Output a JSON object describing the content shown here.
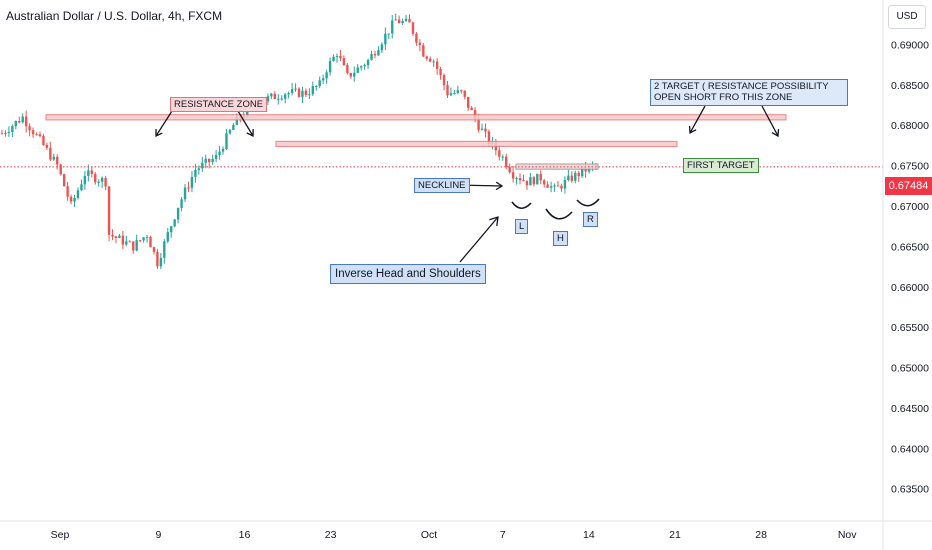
{
  "header": {
    "title": "Australian Dollar / U.S. Dollar, 4h, FXCM"
  },
  "currency_label": "USD",
  "current_price": "0.67484",
  "colors": {
    "up": "#26a69a",
    "down": "#ef5350",
    "price_line": "#f23645",
    "zone_fill": "#f8c8cc",
    "zone_border": "#e57373"
  },
  "annotations": {
    "resistance_zone": "RESISTANCE ZONE",
    "second_target": "2 TARGET ( RESISTANCE POSSIBILITY OPEN SHORT FRO THIS ZONE",
    "first_target": "FIRST TARGET",
    "neckline": "NECKLINE",
    "pattern": "Inverse Head and Shoulders",
    "left_shoulder": "L",
    "head": "H",
    "right_shoulder": "R"
  },
  "chart_data": {
    "type": "candlestick",
    "title": "Australian Dollar / U.S. Dollar, 4h, FXCM",
    "y_ticks": [
      "0.69000",
      "0.68500",
      "0.68000",
      "0.67500",
      "0.67000",
      "0.66500",
      "0.66000",
      "0.65500",
      "0.65000",
      "0.64500",
      "0.64000",
      "0.63500"
    ],
    "x_ticks": [
      "Sep",
      "9",
      "16",
      "23",
      "Oct",
      "7",
      "14",
      "21",
      "28",
      "Nov"
    ],
    "ylim": [
      0.631,
      0.6955
    ],
    "x_domain": [
      "2024-08-29",
      "2024-11-07"
    ],
    "grid": false,
    "current_price": 0.67484,
    "series_path": [
      [
        0,
        0.679
      ],
      [
        6,
        0.681
      ],
      [
        12,
        0.6775
      ],
      [
        16,
        0.675
      ],
      [
        20,
        0.67
      ],
      [
        24,
        0.674
      ],
      [
        30,
        0.673
      ],
      [
        31,
        0.6665
      ],
      [
        38,
        0.665
      ],
      [
        42,
        0.6665
      ],
      [
        45,
        0.663
      ],
      [
        51,
        0.67
      ],
      [
        56,
        0.6745
      ],
      [
        62,
        0.676
      ],
      [
        67,
        0.68
      ],
      [
        70,
        0.6815
      ],
      [
        75,
        0.683
      ],
      [
        82,
        0.684
      ],
      [
        88,
        0.684
      ],
      [
        92,
        0.685
      ],
      [
        94,
        0.687
      ],
      [
        97,
        0.689
      ],
      [
        100,
        0.686
      ],
      [
        106,
        0.688
      ],
      [
        110,
        0.6905
      ],
      [
        114,
        0.693
      ],
      [
        118,
        0.6925
      ],
      [
        122,
        0.689
      ],
      [
        125,
        0.688
      ],
      [
        129,
        0.684
      ],
      [
        133,
        0.684
      ],
      [
        138,
        0.68
      ],
      [
        141,
        0.678
      ],
      [
        145,
        0.676
      ],
      [
        148,
        0.674
      ],
      [
        152,
        0.673
      ],
      [
        156,
        0.6735
      ],
      [
        160,
        0.672
      ],
      [
        165,
        0.6735
      ],
      [
        169,
        0.6745
      ],
      [
        172,
        0.675
      ]
    ],
    "zones": [
      {
        "label": "RESISTANCE ZONE",
        "from": 0.6809,
        "to": 0.6813
      },
      {
        "label": "FIRST TARGET",
        "from": 0.6776,
        "to": 0.678
      },
      {
        "label": "NECKLINE",
        "from": 0.6748,
        "to": 0.6752
      }
    ]
  }
}
